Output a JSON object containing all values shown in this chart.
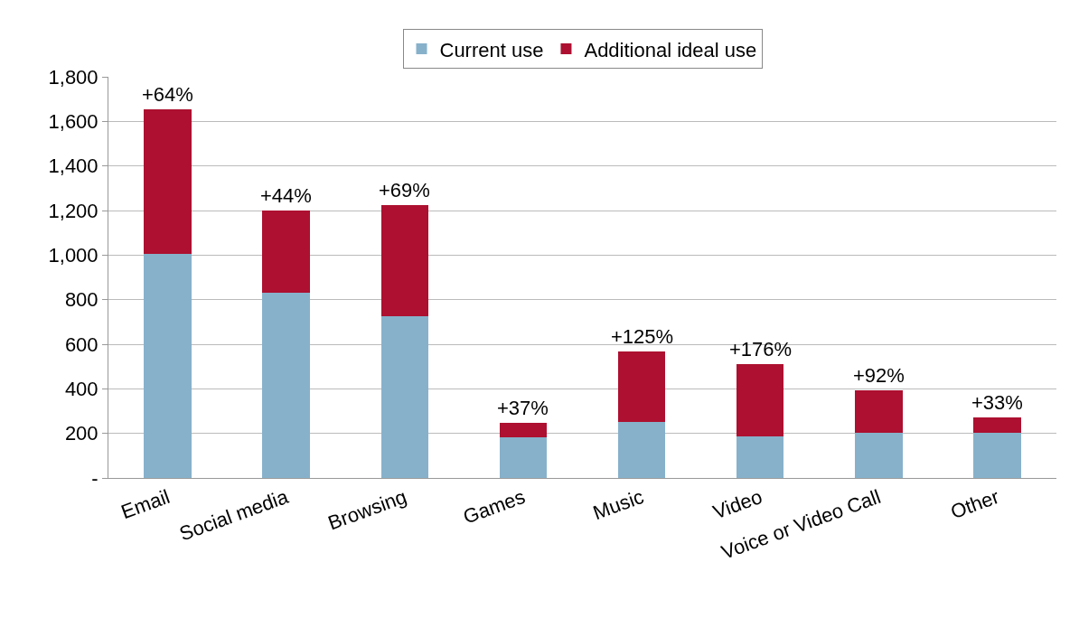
{
  "chart_data": {
    "type": "bar",
    "stacked": true,
    "categories": [
      "Email",
      "Social media",
      "Browsing",
      "Games",
      "Music",
      "Video",
      "Voice or Video Call",
      "Other"
    ],
    "series": [
      {
        "name": "Current use",
        "color": "#87b1cb",
        "values": [
          1005,
          830,
          725,
          182,
          252,
          185,
          204,
          204
        ]
      },
      {
        "name": "Additional ideal use",
        "color": "#ad1030",
        "values": [
          650,
          368,
          500,
          67,
          314,
          327,
          189,
          66
        ]
      }
    ],
    "ylim": [
      0,
      1800
    ],
    "yticks": [
      {
        "value": 0,
        "label": "-"
      },
      200,
      400,
      600,
      800,
      {
        "value": 1000,
        "label": "1,000"
      },
      {
        "value": 1200,
        "label": "1,200"
      },
      {
        "value": 1400,
        "label": "1,400"
      },
      {
        "value": 1600,
        "label": "1,600"
      },
      {
        "value": 1800,
        "label": "1,800"
      }
    ],
    "grid": "y",
    "legend": "top",
    "annotations": [
      {
        "text": "+64%",
        "x": "Email",
        "y": 1655
      },
      {
        "text": "+44%",
        "x": "Social media",
        "y": 1198
      },
      {
        "text": "+69%",
        "x": "Browsing",
        "y": 1225
      },
      {
        "text": "+37%",
        "x": "Games",
        "y": 249
      },
      {
        "text": "+125%",
        "x": "Music",
        "y": 566
      },
      {
        "text": "+176%",
        "x": "Video",
        "y": 512
      },
      {
        "text": "+92%",
        "x": "Voice or Video Call",
        "y": 393
      },
      {
        "text": "+33%",
        "x": "Other",
        "y": 270
      }
    ]
  }
}
